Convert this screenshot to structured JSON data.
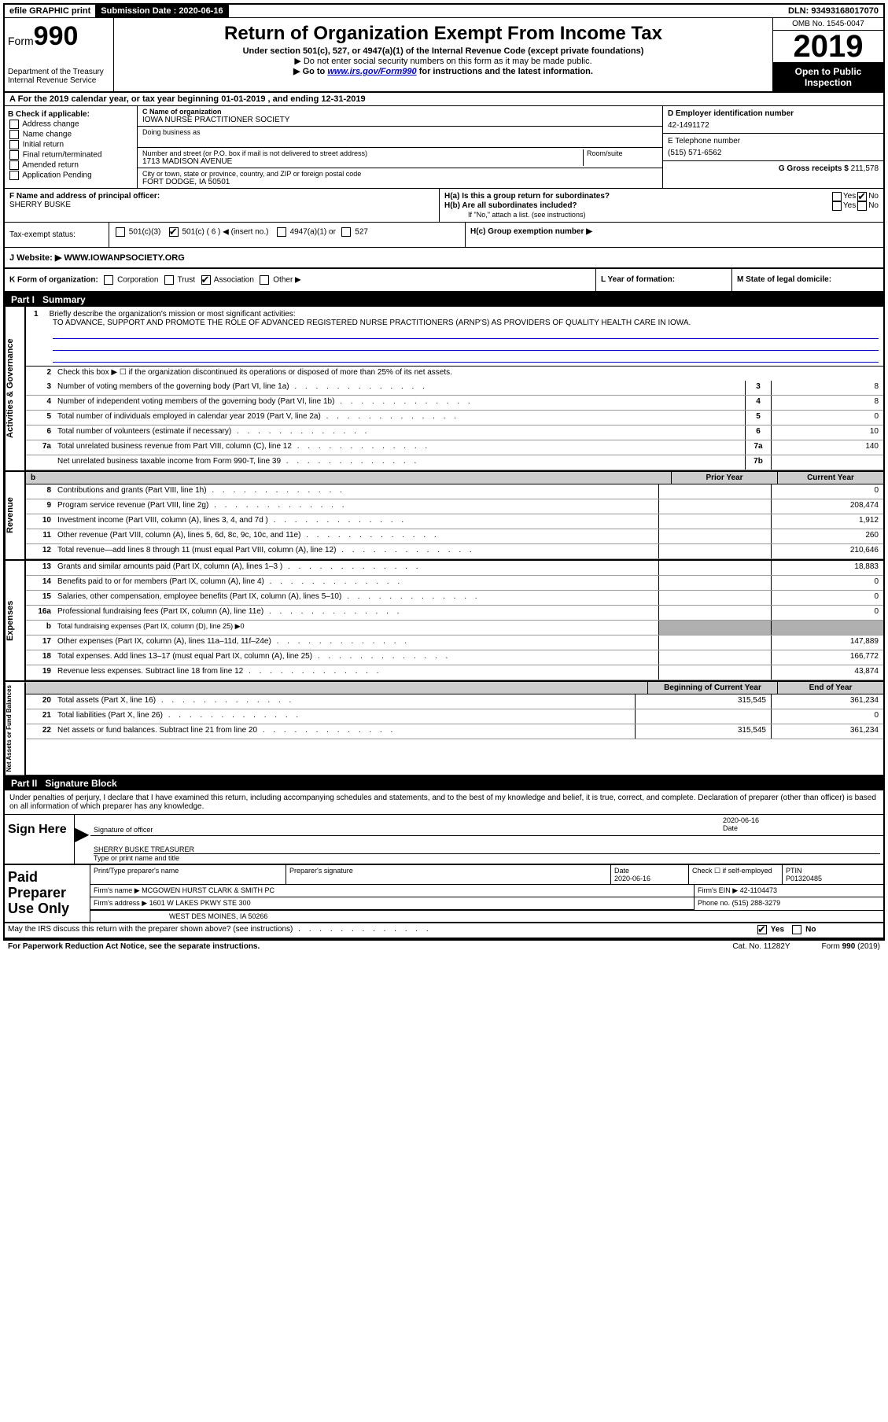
{
  "topbar": {
    "efile": "efile GRAPHIC print",
    "submission_label": "Submission Date : 2020-06-16",
    "dln": "DLN: 93493168017070"
  },
  "header": {
    "form_prefix": "Form",
    "form_number": "990",
    "dept": "Department of the Treasury",
    "irs": "Internal Revenue Service",
    "title": "Return of Organization Exempt From Income Tax",
    "sub": "Under section 501(c), 527, or 4947(a)(1) of the Internal Revenue Code (except private foundations)",
    "note1": "▶ Do not enter social security numbers on this form as it may be made public.",
    "note2_a": "▶ Go to ",
    "note2_link": "www.irs.gov/Form990",
    "note2_b": " for instructions and the latest information.",
    "omb": "OMB No. 1545-0047",
    "year": "2019",
    "open": "Open to Public Inspection"
  },
  "period": "A For the 2019 calendar year, or tax year beginning 01-01-2019    , and ending 12-31-2019",
  "checkboxes": {
    "header": "B Check if applicable:",
    "items": [
      "Address change",
      "Name change",
      "Initial return",
      "Final return/terminated",
      "Amended return",
      "Application Pending"
    ]
  },
  "entity": {
    "name_label": "C Name of organization",
    "name": "IOWA NURSE PRACTITIONER SOCIETY",
    "dba_label": "Doing business as",
    "addr_label": "Number and street (or P.O. box if mail is not delivered to street address)",
    "room_label": "Room/suite",
    "addr": "1713 MADISON AVENUE",
    "city_label": "City or town, state or province, country, and ZIP or foreign postal code",
    "city": "FORT DODGE, IA  50501",
    "ein_label": "D Employer identification number",
    "ein": "42-1491172",
    "phone_label": "E Telephone number",
    "phone": "(515) 571-6562",
    "gross_label": "G Gross receipts $ ",
    "gross": "211,578"
  },
  "officer": {
    "label": "F  Name and address of principal officer:",
    "name": "SHERRY BUSKE",
    "ha": "H(a)  Is this a group return for subordinates?",
    "hb": "H(b)  Are all subordinates included?",
    "hb_note": "If \"No,\" attach a list. (see instructions)",
    "hc": "H(c)  Group exemption number ▶"
  },
  "status": {
    "label": "Tax-exempt status:",
    "opt1": "501(c)(3)",
    "opt2": "501(c) ( 6 ) ◀ (insert no.)",
    "opt3": "4947(a)(1) or",
    "opt4": "527"
  },
  "website": {
    "label": "J  Website: ▶  ",
    "url": "WWW.IOWANPSOCIETY.ORG"
  },
  "kform": {
    "k": "K Form of organization:",
    "corp": "Corporation",
    "trust": "Trust",
    "assoc": "Association",
    "other": "Other ▶",
    "l": "L Year of formation:",
    "m": "M State of legal domicile:"
  },
  "part1": {
    "title": "Part I",
    "name": "Summary",
    "q1_label": "1",
    "q1_text": "Briefly describe the organization's mission or most significant activities:",
    "mission": "TO ADVANCE, SUPPORT AND PROMOTE THE ROLE OF ADVANCED REGISTERED NURSE PRACTITIONERS (ARNP'S) AS PROVIDERS OF QUALITY HEALTH CARE IN IOWA.",
    "q2_num": "2",
    "q2_text": "Check this box ▶ ☐  if the organization discontinued its operations or disposed of more than 25% of its net assets.",
    "sidebar1": "Activities & Governance",
    "sidebar2": "Revenue",
    "sidebar3": "Expenses",
    "sidebar4": "Net Assets or Fund Balances",
    "prior": "Prior Year",
    "current": "Current Year",
    "beg": "Beginning of Current Year",
    "eoy": "End of Year"
  },
  "lines_gov": [
    {
      "n": "3",
      "d": "Number of voting members of the governing body (Part VI, line 1a)",
      "box": "3",
      "v": "8"
    },
    {
      "n": "4",
      "d": "Number of independent voting members of the governing body (Part VI, line 1b)",
      "box": "4",
      "v": "8"
    },
    {
      "n": "5",
      "d": "Total number of individuals employed in calendar year 2019 (Part V, line 2a)",
      "box": "5",
      "v": "0"
    },
    {
      "n": "6",
      "d": "Total number of volunteers (estimate if necessary)",
      "box": "6",
      "v": "10"
    },
    {
      "n": "7a",
      "d": "Total unrelated business revenue from Part VIII, column (C), line 12",
      "box": "7a",
      "v": "140"
    },
    {
      "n": "",
      "d": "Net unrelated business taxable income from Form 990-T, line 39",
      "box": "7b",
      "v": ""
    }
  ],
  "lines_rev": [
    {
      "n": "8",
      "d": "Contributions and grants (Part VIII, line 1h)",
      "p": "",
      "c": "0"
    },
    {
      "n": "9",
      "d": "Program service revenue (Part VIII, line 2g)",
      "p": "",
      "c": "208,474"
    },
    {
      "n": "10",
      "d": "Investment income (Part VIII, column (A), lines 3, 4, and 7d )",
      "p": "",
      "c": "1,912"
    },
    {
      "n": "11",
      "d": "Other revenue (Part VIII, column (A), lines 5, 6d, 8c, 9c, 10c, and 11e)",
      "p": "",
      "c": "260"
    },
    {
      "n": "12",
      "d": "Total revenue—add lines 8 through 11 (must equal Part VIII, column (A), line 12)",
      "p": "",
      "c": "210,646"
    }
  ],
  "lines_exp": [
    {
      "n": "13",
      "d": "Grants and similar amounts paid (Part IX, column (A), lines 1–3 )",
      "p": "",
      "c": "18,883"
    },
    {
      "n": "14",
      "d": "Benefits paid to or for members (Part IX, column (A), line 4)",
      "p": "",
      "c": "0"
    },
    {
      "n": "15",
      "d": "Salaries, other compensation, employee benefits (Part IX, column (A), lines 5–10)",
      "p": "",
      "c": "0"
    },
    {
      "n": "16a",
      "d": "Professional fundraising fees (Part IX, column (A), line 11e)",
      "p": "",
      "c": "0"
    },
    {
      "n": "b",
      "d": "Total fundraising expenses (Part IX, column (D), line 25) ▶0",
      "shaded": true
    },
    {
      "n": "17",
      "d": "Other expenses (Part IX, column (A), lines 11a–11d, 11f–24e)",
      "p": "",
      "c": "147,889"
    },
    {
      "n": "18",
      "d": "Total expenses. Add lines 13–17 (must equal Part IX, column (A), line 25)",
      "p": "",
      "c": "166,772"
    },
    {
      "n": "19",
      "d": "Revenue less expenses. Subtract line 18 from line 12",
      "p": "",
      "c": "43,874"
    }
  ],
  "lines_net": [
    {
      "n": "20",
      "d": "Total assets (Part X, line 16)",
      "p": "315,545",
      "c": "361,234"
    },
    {
      "n": "21",
      "d": "Total liabilities (Part X, line 26)",
      "p": "",
      "c": "0"
    },
    {
      "n": "22",
      "d": "Net assets or fund balances. Subtract line 21 from line 20",
      "p": "315,545",
      "c": "361,234"
    }
  ],
  "part2": {
    "title": "Part II",
    "name": "Signature Block",
    "decl": "Under penalties of perjury, I declare that I have examined this return, including accompanying schedules and statements, and to the best of my knowledge and belief, it is true, correct, and complete. Declaration of preparer (other than officer) is based on all information of which preparer has any knowledge.",
    "sign_here": "Sign Here",
    "sig_of_officer": "Signature of officer",
    "date": "2020-06-16",
    "date_label": "Date",
    "officer_name": "SHERRY BUSKE  TREASURER",
    "type_label": "Type or print name and title"
  },
  "preparer": {
    "label": "Paid Preparer Use Only",
    "h_name": "Print/Type preparer's name",
    "h_sig": "Preparer's signature",
    "h_date": "Date",
    "date": "2020-06-16",
    "check_label": "Check ☐ if self-employed",
    "ptin_label": "PTIN",
    "ptin": "P01320485",
    "firm_name_label": "Firm's name    ▶",
    "firm_name": "MCGOWEN HURST CLARK & SMITH PC",
    "firm_ein_label": "Firm's EIN ▶",
    "firm_ein": "42-1104473",
    "firm_addr_label": "Firm's address ▶",
    "firm_addr1": "1601 W LAKES PKWY STE 300",
    "firm_addr2": "WEST DES MOINES, IA  50266",
    "phone_label": "Phone no.",
    "phone": "(515) 288-3279"
  },
  "discuss": "May the IRS discuss this return with the preparer shown above? (see instructions)",
  "footer": {
    "left": "For Paperwork Reduction Act Notice, see the separate instructions.",
    "mid": "Cat. No. 11282Y",
    "right": "Form 990 (2019)"
  },
  "yn": {
    "yes": "Yes",
    "no": "No"
  }
}
